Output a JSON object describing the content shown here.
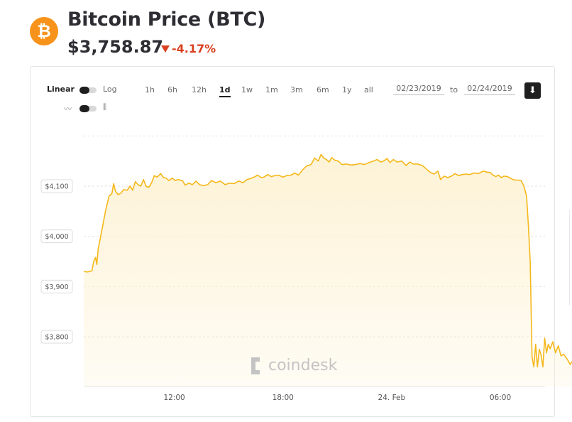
{
  "header": {
    "logo_glyph": "₿",
    "title": "Bitcoin Price (BTC)",
    "price": "$3,758.87",
    "change": "-4.17%",
    "change_color": "#d9401f"
  },
  "controls": {
    "scale_linear": "Linear",
    "scale_log": "Log",
    "ranges": [
      "1h",
      "6h",
      "12h",
      "1d",
      "1w",
      "1m",
      "3m",
      "6m",
      "1y",
      "all"
    ],
    "active_range": "1d",
    "date_from": "02/23/2019",
    "date_to": "02/24/2019",
    "to_label": "to",
    "download_icon": "download-icon",
    "chart_style_icons": [
      "line-chart-icon",
      "candlestick-icon"
    ]
  },
  "watermark": "coindesk",
  "chart_data": {
    "type": "area",
    "title": "",
    "xlabel": "",
    "ylabel": "",
    "line_color": "#f5b81b",
    "fill_color": "#fdf2d4",
    "ylim": [
      3730,
      4190
    ],
    "yticks": [
      3800,
      3900,
      4000,
      4100
    ],
    "ytick_labels": [
      "$3,800",
      "$3,900",
      "$4,000",
      "$4,100"
    ],
    "xlim": [
      0,
      27
    ],
    "xticks": [
      5,
      11,
      17,
      23
    ],
    "xtick_labels": [
      "12:00",
      "18:00",
      "24. Feb",
      "06:00"
    ],
    "grid": true,
    "points": [
      [
        0.0,
        3930
      ],
      [
        0.2,
        3929
      ],
      [
        0.45,
        3931
      ],
      [
        0.55,
        3950
      ],
      [
        0.65,
        3958
      ],
      [
        0.72,
        3944
      ],
      [
        0.8,
        3975
      ],
      [
        1.0,
        4012
      ],
      [
        1.2,
        4050
      ],
      [
        1.4,
        4080
      ],
      [
        1.55,
        4085
      ],
      [
        1.65,
        4105
      ],
      [
        1.75,
        4090
      ],
      [
        1.9,
        4083
      ],
      [
        2.05,
        4086
      ],
      [
        2.2,
        4093
      ],
      [
        2.4,
        4092
      ],
      [
        2.55,
        4100
      ],
      [
        2.7,
        4092
      ],
      [
        2.85,
        4109
      ],
      [
        3.0,
        4103
      ],
      [
        3.15,
        4100
      ],
      [
        3.3,
        4113
      ],
      [
        3.45,
        4099
      ],
      [
        3.6,
        4098
      ],
      [
        3.75,
        4107
      ],
      [
        3.9,
        4121
      ],
      [
        4.05,
        4118
      ],
      [
        4.25,
        4125
      ],
      [
        4.4,
        4117
      ],
      [
        4.55,
        4116
      ],
      [
        4.7,
        4111
      ],
      [
        4.9,
        4116
      ],
      [
        5.05,
        4111
      ],
      [
        5.2,
        4113
      ],
      [
        5.45,
        4111
      ],
      [
        5.6,
        4102
      ],
      [
        5.8,
        4106
      ],
      [
        6.0,
        4103
      ],
      [
        6.2,
        4110
      ],
      [
        6.4,
        4103
      ],
      [
        6.6,
        4101
      ],
      [
        6.85,
        4103
      ],
      [
        7.05,
        4111
      ],
      [
        7.3,
        4107
      ],
      [
        7.55,
        4110
      ],
      [
        7.8,
        4103
      ],
      [
        8.05,
        4106
      ],
      [
        8.3,
        4105
      ],
      [
        8.55,
        4110
      ],
      [
        8.8,
        4107
      ],
      [
        9.0,
        4113
      ],
      [
        9.2,
        4115
      ],
      [
        9.4,
        4118
      ],
      [
        9.6,
        4122
      ],
      [
        9.8,
        4117
      ],
      [
        9.95,
        4118
      ],
      [
        10.15,
        4123
      ],
      [
        10.35,
        4119
      ],
      [
        10.55,
        4121
      ],
      [
        10.75,
        4122
      ],
      [
        11.0,
        4118
      ],
      [
        11.2,
        4121
      ],
      [
        11.45,
        4122
      ],
      [
        11.65,
        4126
      ],
      [
        11.85,
        4122
      ],
      [
        12.1,
        4133
      ],
      [
        12.3,
        4140
      ],
      [
        12.55,
        4143
      ],
      [
        12.75,
        4156
      ],
      [
        12.95,
        4150
      ],
      [
        13.1,
        4163
      ],
      [
        13.25,
        4156
      ],
      [
        13.4,
        4153
      ],
      [
        13.55,
        4148
      ],
      [
        13.7,
        4157
      ],
      [
        13.85,
        4152
      ],
      [
        14.05,
        4150
      ],
      [
        14.25,
        4143
      ],
      [
        14.5,
        4144
      ],
      [
        14.75,
        4142
      ],
      [
        15.0,
        4143
      ],
      [
        15.25,
        4145
      ],
      [
        15.5,
        4143
      ],
      [
        15.75,
        4147
      ],
      [
        16.0,
        4150
      ],
      [
        16.2,
        4153
      ],
      [
        16.4,
        4148
      ],
      [
        16.55,
        4150
      ],
      [
        16.75,
        4155
      ],
      [
        16.9,
        4147
      ],
      [
        17.1,
        4153
      ],
      [
        17.3,
        4148
      ],
      [
        17.55,
        4150
      ],
      [
        17.8,
        4141
      ],
      [
        18.0,
        4148
      ],
      [
        18.2,
        4144
      ],
      [
        18.45,
        4144
      ],
      [
        18.7,
        4141
      ],
      [
        18.95,
        4133
      ],
      [
        19.15,
        4127
      ],
      [
        19.35,
        4124
      ],
      [
        19.55,
        4130
      ],
      [
        19.7,
        4113
      ],
      [
        19.9,
        4120
      ],
      [
        20.1,
        4117
      ],
      [
        20.3,
        4120
      ],
      [
        20.5,
        4125
      ],
      [
        20.7,
        4121
      ],
      [
        20.9,
        4123
      ],
      [
        21.1,
        4124
      ],
      [
        21.3,
        4123
      ],
      [
        21.55,
        4126
      ],
      [
        21.8,
        4125
      ],
      [
        22.05,
        4130
      ],
      [
        22.25,
        4128
      ],
      [
        22.45,
        4127
      ],
      [
        22.6,
        4122
      ],
      [
        22.75,
        4119
      ],
      [
        22.9,
        4122
      ],
      [
        23.05,
        4117
      ],
      [
        23.2,
        4120
      ],
      [
        23.4,
        4119
      ],
      [
        23.55,
        4116
      ],
      [
        23.7,
        4113
      ],
      [
        23.85,
        4112
      ],
      [
        24.0,
        4112
      ],
      [
        24.15,
        4111
      ],
      [
        24.3,
        4100
      ],
      [
        24.45,
        4080
      ],
      [
        24.55,
        4020
      ],
      [
        24.65,
        3950
      ],
      [
        24.75,
        3760
      ],
      [
        24.85,
        3740
      ],
      [
        24.95,
        3785
      ],
      [
        25.05,
        3740
      ],
      [
        25.15,
        3775
      ],
      [
        25.25,
        3764
      ],
      [
        25.35,
        3740
      ],
      [
        25.45,
        3797
      ],
      [
        25.55,
        3768
      ],
      [
        25.65,
        3785
      ],
      [
        25.75,
        3776
      ],
      [
        25.9,
        3790
      ],
      [
        26.05,
        3768
      ],
      [
        26.2,
        3782
      ],
      [
        26.35,
        3762
      ],
      [
        26.5,
        3765
      ],
      [
        26.7,
        3755
      ],
      [
        26.85,
        3745
      ],
      [
        27.0,
        3752
      ],
      [
        27.15,
        3738
      ]
    ]
  }
}
